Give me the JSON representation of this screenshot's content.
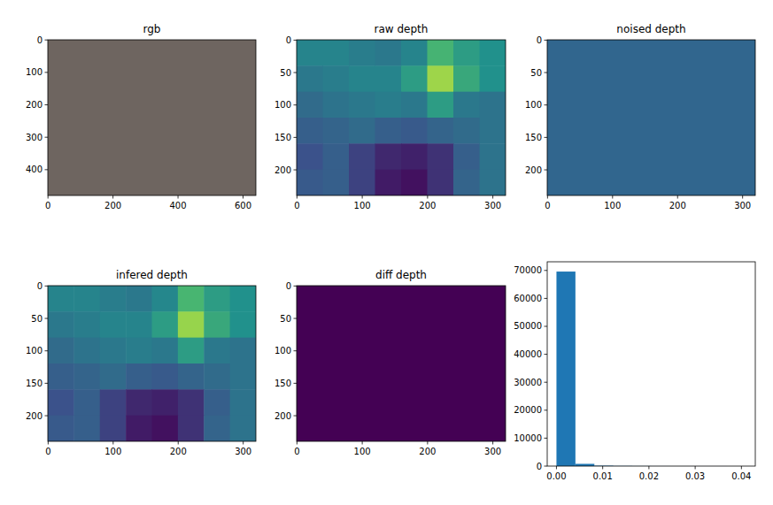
{
  "chart_data": [
    {
      "type": "image",
      "title": "rgb",
      "color": "#6e6560",
      "xlim": [
        -0.5,
        639.5
      ],
      "ylim": [
        479.5,
        -0.5
      ],
      "xticks": [
        0,
        200,
        400,
        600
      ],
      "yticks": [
        0,
        100,
        200,
        300,
        400
      ]
    },
    {
      "type": "heatmap",
      "title": "raw depth",
      "clim": [
        0,
        1
      ],
      "cells": [
        [
          0.45,
          0.45,
          0.42,
          0.4,
          0.45,
          0.65,
          0.55,
          0.5
        ],
        [
          0.4,
          0.42,
          0.45,
          0.45,
          0.55,
          0.85,
          0.6,
          0.5
        ],
        [
          0.35,
          0.38,
          0.4,
          0.42,
          0.4,
          0.55,
          0.4,
          0.38
        ],
        [
          0.3,
          0.32,
          0.35,
          0.3,
          0.28,
          0.32,
          0.35,
          0.38
        ],
        [
          0.25,
          0.3,
          0.2,
          0.12,
          0.1,
          0.15,
          0.3,
          0.38
        ],
        [
          0.28,
          0.3,
          0.2,
          0.08,
          0.05,
          0.15,
          0.32,
          0.38
        ]
      ],
      "xlim": [
        -0.5,
        319.5
      ],
      "ylim": [
        239.5,
        -0.5
      ],
      "xticks": [
        0,
        100,
        200,
        300
      ],
      "yticks": [
        0,
        50,
        100,
        150,
        200
      ]
    },
    {
      "type": "image",
      "title": "noised depth",
      "color": "#31668e",
      "xlim": [
        -0.5,
        319.5
      ],
      "ylim": [
        239.5,
        -0.5
      ],
      "xticks": [
        0,
        100,
        200,
        300
      ],
      "yticks": [
        0,
        50,
        100,
        150,
        200
      ]
    },
    {
      "type": "heatmap",
      "title": "infered depth",
      "clim": [
        0,
        1
      ],
      "cells": [
        [
          0.45,
          0.45,
          0.42,
          0.4,
          0.46,
          0.66,
          0.55,
          0.5
        ],
        [
          0.4,
          0.42,
          0.45,
          0.45,
          0.55,
          0.84,
          0.6,
          0.5
        ],
        [
          0.35,
          0.38,
          0.4,
          0.42,
          0.4,
          0.55,
          0.4,
          0.38
        ],
        [
          0.3,
          0.32,
          0.35,
          0.3,
          0.28,
          0.32,
          0.35,
          0.38
        ],
        [
          0.25,
          0.3,
          0.2,
          0.12,
          0.1,
          0.15,
          0.3,
          0.38
        ],
        [
          0.28,
          0.3,
          0.2,
          0.08,
          0.05,
          0.15,
          0.32,
          0.38
        ]
      ],
      "xlim": [
        -0.5,
        319.5
      ],
      "ylim": [
        239.5,
        -0.5
      ],
      "xticks": [
        0,
        100,
        200,
        300
      ],
      "yticks": [
        0,
        50,
        100,
        150,
        200
      ]
    },
    {
      "type": "image",
      "title": "diff depth",
      "color": "#440154",
      "xlim": [
        -0.5,
        319.5
      ],
      "ylim": [
        239.5,
        -0.5
      ],
      "xticks": [
        0,
        100,
        200,
        300
      ],
      "yticks": [
        0,
        50,
        100,
        150,
        200
      ]
    },
    {
      "type": "histogram",
      "color": "#1f77b4",
      "bins": [
        0,
        0.0041,
        0.0082,
        0.0123,
        0.0164,
        0.0205,
        0.0246,
        0.0287,
        0.0328,
        0.0369,
        0.041
      ],
      "values": [
        69600,
        800,
        150,
        60,
        30,
        15,
        8,
        4,
        2,
        1
      ],
      "xlim": [
        -0.002,
        0.043
      ],
      "ylim": [
        0,
        73100
      ],
      "xticks": [
        {
          "value": 0,
          "label": "0.00"
        },
        {
          "value": 0.01,
          "label": "0.01"
        },
        {
          "value": 0.02,
          "label": "0.02"
        },
        {
          "value": 0.03,
          "label": "0.03"
        },
        {
          "value": 0.04,
          "label": "0.04"
        }
      ],
      "yticks": [
        0,
        10000,
        20000,
        30000,
        40000,
        50000,
        60000,
        70000
      ]
    }
  ]
}
